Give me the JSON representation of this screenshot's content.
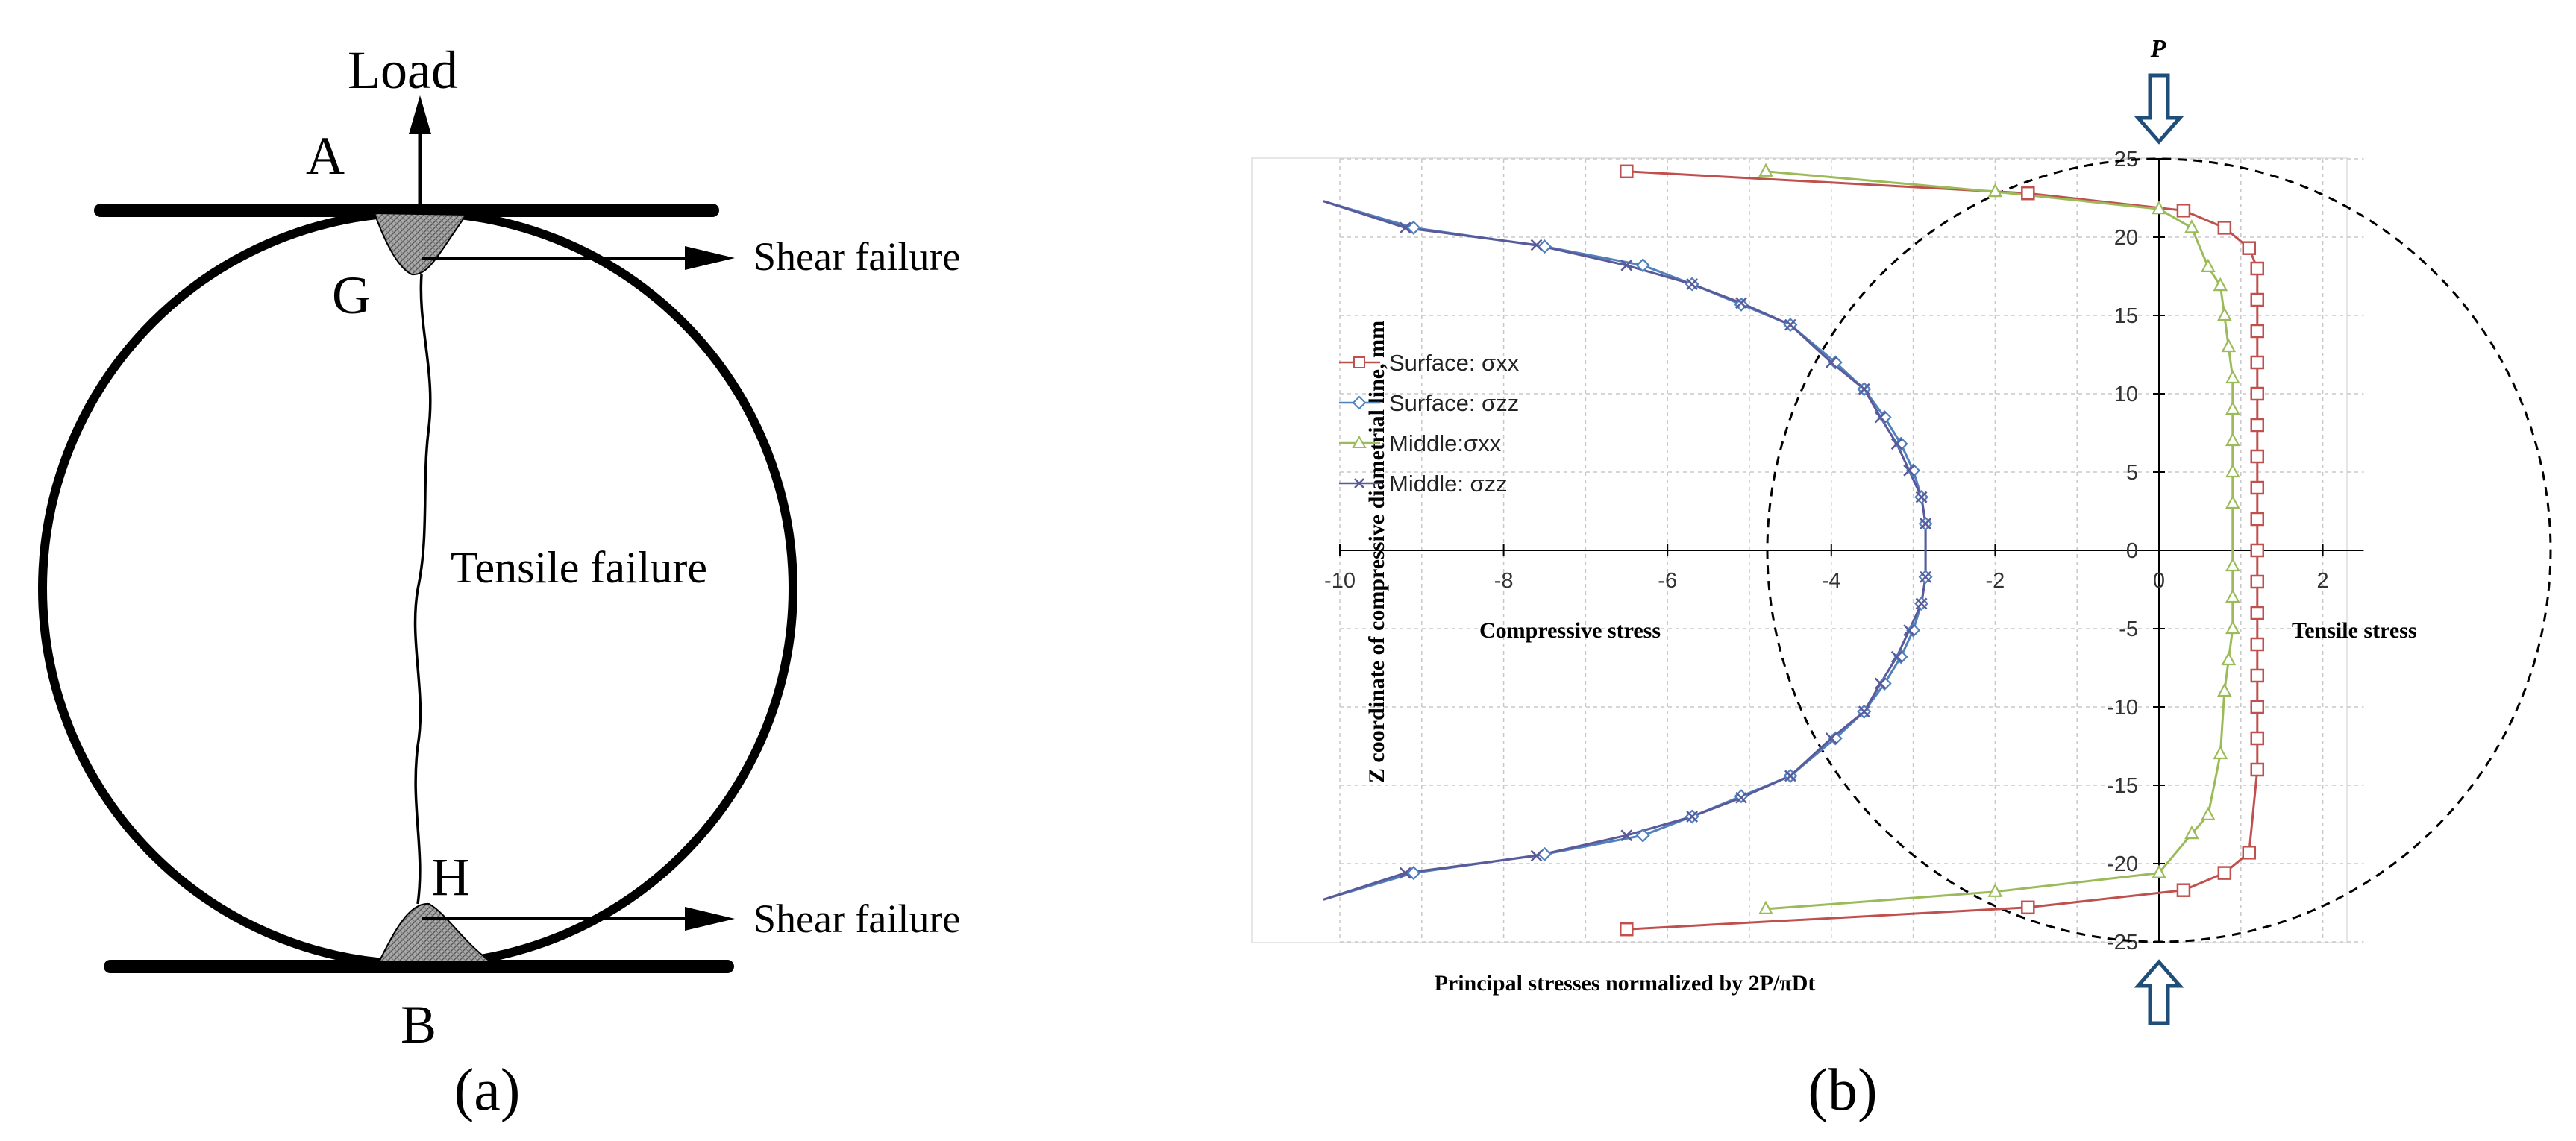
{
  "panel_a": {
    "label": "(a)",
    "load": "Load",
    "point_a": "A",
    "point_b": "B",
    "point_g": "G",
    "point_h": "H",
    "shear_top": "Shear failure",
    "shear_bottom": "Shear failure",
    "tensile": "Tensile failure"
  },
  "panel_b": {
    "label": "(b)",
    "p_label": "P"
  },
  "colors": {
    "surface_xx": "#c0504d",
    "surface_zz": "#4f81bd",
    "middle_xx": "#9bbb59",
    "middle_zz": "#5a5a9a",
    "arrow": "#1f4e79"
  },
  "chart_data": {
    "type": "scatter",
    "xlabel": "Principal stresses normalized by 2P/πDt",
    "ylabel": "Z coordinate of compressive diametrial line, mm",
    "left_annotation": "Compressive stress",
    "right_annotation": "Tensile stress",
    "xlim": [
      -10,
      2.5
    ],
    "ylim": [
      -25,
      25
    ],
    "xticks": [
      -10,
      -8,
      -6,
      -4,
      -2,
      0,
      2
    ],
    "yticks": [
      -25,
      -20,
      -15,
      -10,
      -5,
      0,
      5,
      10,
      15,
      20,
      25
    ],
    "grid": true,
    "legend_position": "upper-left",
    "reference_circle": {
      "center": [
        0,
        0
      ],
      "radius": 25,
      "style": "dashed"
    },
    "series": [
      {
        "name": "Surface: σxx",
        "marker": "square",
        "x": [
          -6.5,
          -1.6,
          0.3,
          0.8,
          1.1,
          1.2,
          1.2,
          1.2,
          1.2,
          1.2,
          1.2,
          1.2,
          1.2,
          1.2,
          1.2,
          1.2,
          1.2,
          1.2,
          1.2,
          1.2,
          1.2,
          1.2,
          1.1,
          0.8,
          0.3,
          -1.6,
          -6.5
        ],
        "y": [
          24.2,
          22.8,
          21.7,
          20.6,
          19.3,
          18.0,
          16.0,
          14.0,
          12.0,
          10.0,
          8.0,
          6.0,
          4.0,
          2.0,
          0.0,
          -2.0,
          -4.0,
          -6.0,
          -8.0,
          -10.0,
          -12.0,
          -14.0,
          -19.3,
          -20.6,
          -21.7,
          -22.8,
          -24.2
        ]
      },
      {
        "name": "Surface: σzz",
        "marker": "diamond",
        "x": [
          -9.1,
          -7.5,
          -6.3,
          -5.7,
          -5.1,
          -4.5,
          -3.95,
          -3.6,
          -3.35,
          -3.15,
          -3.0,
          -2.9,
          -2.85,
          -2.85,
          -2.9,
          -3.0,
          -3.15,
          -3.35,
          -3.6,
          -3.95,
          -4.5,
          -5.1,
          -5.7,
          -6.3,
          -7.5,
          -9.1
        ],
        "y": [
          20.6,
          19.4,
          18.2,
          17.0,
          15.7,
          14.4,
          12.0,
          10.3,
          8.5,
          6.8,
          5.1,
          3.4,
          1.7,
          -1.7,
          -3.4,
          -5.1,
          -6.8,
          -8.5,
          -10.3,
          -12.0,
          -14.4,
          -15.7,
          -17.0,
          -18.2,
          -19.4,
          -20.6
        ]
      },
      {
        "name": "Middle:σxx",
        "marker": "triangle",
        "x": [
          -4.8,
          -2.0,
          0.0,
          0.4,
          0.6,
          0.75,
          0.8,
          0.85,
          0.9,
          0.9,
          0.9,
          0.9,
          0.9,
          0.9,
          0.9,
          0.9,
          0.85,
          0.8,
          0.75,
          0.6,
          0.4,
          0.0,
          -2.0,
          -4.8
        ],
        "y": [
          24.2,
          22.9,
          21.8,
          20.6,
          18.1,
          16.9,
          15.0,
          13.0,
          11.0,
          9.0,
          7.0,
          5.0,
          3.0,
          -1.0,
          -3.0,
          -5.0,
          -7.0,
          -9.0,
          -13.0,
          -16.9,
          -18.1,
          -20.6,
          -21.8,
          -22.9
        ]
      },
      {
        "name": "Middle: σzz",
        "marker": "x",
        "x": [
          -9.2,
          -7.6,
          -6.5,
          -5.7,
          -5.1,
          -4.5,
          -4.0,
          -3.6,
          -3.4,
          -3.2,
          -3.05,
          -2.9,
          -2.85,
          -2.85,
          -2.9,
          -3.05,
          -3.2,
          -3.4,
          -3.6,
          -4.0,
          -4.5,
          -5.1,
          -5.7,
          -6.5,
          -7.6,
          -9.2
        ],
        "y": [
          20.6,
          19.5,
          18.2,
          17.0,
          15.8,
          14.4,
          12.0,
          10.3,
          8.5,
          6.8,
          5.1,
          3.4,
          1.7,
          -1.7,
          -3.4,
          -5.1,
          -6.8,
          -8.5,
          -10.3,
          -12.0,
          -14.4,
          -15.8,
          -17.0,
          -18.2,
          -19.5,
          -20.6
        ]
      }
    ]
  }
}
